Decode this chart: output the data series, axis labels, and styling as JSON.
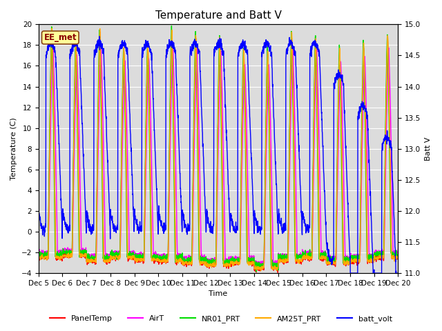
{
  "title": "Temperature and Batt V",
  "xlabel": "Time",
  "ylabel_left": "Temperature (C)",
  "ylabel_right": "Batt V",
  "ylim_left": [
    -4,
    20
  ],
  "ylim_right": [
    11.0,
    15.0
  ],
  "annotation": "EE_met",
  "background_color": "#dcdcdc",
  "series": {
    "PanelTemp": {
      "color": "#ff0000",
      "lw": 1.0
    },
    "AirT": {
      "color": "#ff00ff",
      "lw": 1.0
    },
    "NR01_PRT": {
      "color": "#00dd00",
      "lw": 1.0
    },
    "AM25T_PRT": {
      "color": "#ffaa00",
      "lw": 1.0
    },
    "batt_volt": {
      "color": "#0000ff",
      "lw": 1.0
    }
  },
  "xtick_labels": [
    "Dec 5",
    "Dec 6",
    "Dec 7",
    "Dec 8",
    "Dec 9",
    "Dec 10",
    "Dec 11",
    "Dec 12",
    "Dec 13",
    "Dec 14",
    "Dec 15",
    "Dec 16",
    "Dec 17",
    "Dec 18",
    "Dec 19",
    "Dec 20"
  ],
  "xtick_positions": [
    0,
    1,
    2,
    3,
    4,
    5,
    6,
    7,
    8,
    9,
    10,
    11,
    12,
    13,
    14,
    15
  ],
  "title_fontsize": 11,
  "axis_fontsize": 8,
  "tick_fontsize": 7.5
}
